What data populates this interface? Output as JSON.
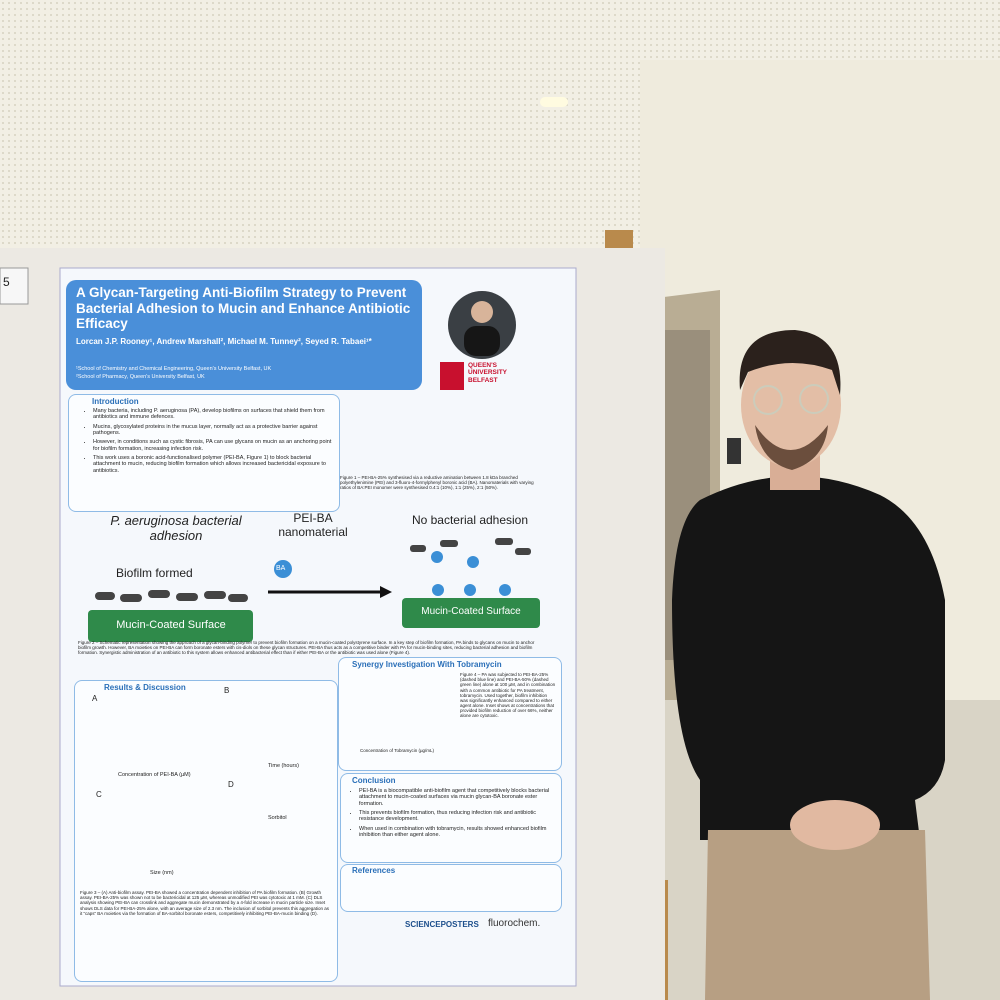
{
  "board_number": "5",
  "poster": {
    "title": "A Glycan-Targeting Anti-Biofilm Strategy to Prevent Bacterial Adhesion to Mucin and Enhance Antibiotic Efficacy",
    "authors": "Lorcan J.P. Rooney¹, Andrew Marshall², Michael M. Tunney², Seyed R. Tabaei¹*",
    "affiliations": [
      "¹School of Chemistry and Chemical Engineering, Queen's University Belfast, UK",
      "²School of Pharmacy, Queen's University Belfast, UK"
    ],
    "university": [
      "QUEEN'S",
      "UNIVERSITY",
      "BELFAST"
    ],
    "introduction": {
      "heading": "Introduction",
      "bullets": [
        "Many bacteria, including P. aeruginosa (PA), develop biofilms on surfaces that shield them from antibiotics and immune defences.",
        "Mucins, glycosylated proteins in the mucus layer, normally act as a protective barrier against pathogens.",
        "However, in conditions such as cystic fibrosis, PA can use glycans on mucin as an anchoring point for biofilm formation, increasing infection risk.",
        "This work uses a boronic acid-functionalised polymer (PEI-BA, Figure 1) to block bacterial attachment to mucin, reducing biofilm formation which allows increased bactericidal exposure to antibiotics."
      ]
    },
    "figure1_caption": "Figure 1 – PEI-BA-25% synthesised via a reductive amination between 1.8 kDa branched polyethylenimine (PEI) and 3-fluoro-4-formylphenyl boronic acid (BA). Nanomaterials with varying ratios of BA:PEI monomer were synthesised 0.4:1 (10%), 1:1 (25%), 2:1 (50%).",
    "schematic": {
      "left_title": "P. aeruginosa bacterial adhesion",
      "middle_title": "PEI-BA nanomaterial",
      "right_title": "No bacterial adhesion",
      "biofilm": "Biofilm formed",
      "surface": "Mucin-Coated Surface",
      "ba": "BA"
    },
    "figure2_caption": "Figure 2 – Schematic representation showing the approach of a glycan-binding polymer to prevent biofilm formation on a mucin-coated polystyrene surface. In a key step of biofilm formation, PA binds to glycans on mucin to anchor biofilm growth. However, BA moieties on PEI-BA can form boronate esters with cis-diols on these glycan structures. PEI-BA thus acts as a competitive binder with PA for mucin-binding sites, reducing bacterial adhesion and biofilm formation. Synergistic administration of an antibiotic to this system allows enhanced antibacterial effect than if either PEI-BA or the antibiotic was used alone (Figure 4).",
    "results": {
      "heading": "Results & Discussion",
      "panels": [
        "A",
        "B",
        "C",
        "D"
      ],
      "axis_labels": [
        "Concentration of PEI-BA (µM)",
        "Time (hours)",
        "Size (nm)",
        "Sorbitol"
      ],
      "caption": "Figure 3 – (A) Anti-biofilm assay. PEI-BA showed a concentration dependent inhibition of PA biofilm formation. (B) Growth assay. PEI-BA-25% was shown not to be bactericidal at 125 µM, whereas unmodified PEI was cytotoxic at 1 mM. (C) DLS analysis showing PEI-BA can crosslink and aggregate mucin demonstrated by a 4-fold increase in mucin particle size. Inset shows DLS data for PEI-BA-25% alone, with an average size of 2.3 nm. The inclusion of sorbitol prevents this aggregation as it “caps” BA moieties via the formation of BA-sorbitol boronate esters, competitively inhibiting PEI-BA-mucin binding (D)."
    },
    "synergy": {
      "heading": "Synergy Investigation With Tobramycin",
      "axis_label": "Concentration of Tobramycin (µg/mL)",
      "caption": "Figure 4 – PA was subjected to PEI-BA-25% (dashed blue line) and PEI-BA-50% (dashed green line) alone at 100 µM, and in combination with a common antibiotic for PA treatment, tobramycin. Used together, biofilm inhibition was significantly enhanced compared to either agent alone. Inset shows at concentrations that provided biofilm reduction of over 66%, neither alone are cytotoxic."
    },
    "conclusion": {
      "heading": "Conclusion",
      "bullets": [
        "PEI-BA is a biocompatible anti-biofilm agent that competitively blocks bacterial attachment to mucin-coated surfaces via mucin glycan-BA boronate ester formation.",
        "This prevents biofilm formation, thus reducing infection risk and antibiotic resistance development.",
        "When used in combination with tobramycin, results showed enhanced biofilm inhibition than either agent alone."
      ]
    },
    "references_heading": "References",
    "sponsors": [
      "SCIENCEPOSTERS",
      "fluorochem."
    ]
  }
}
